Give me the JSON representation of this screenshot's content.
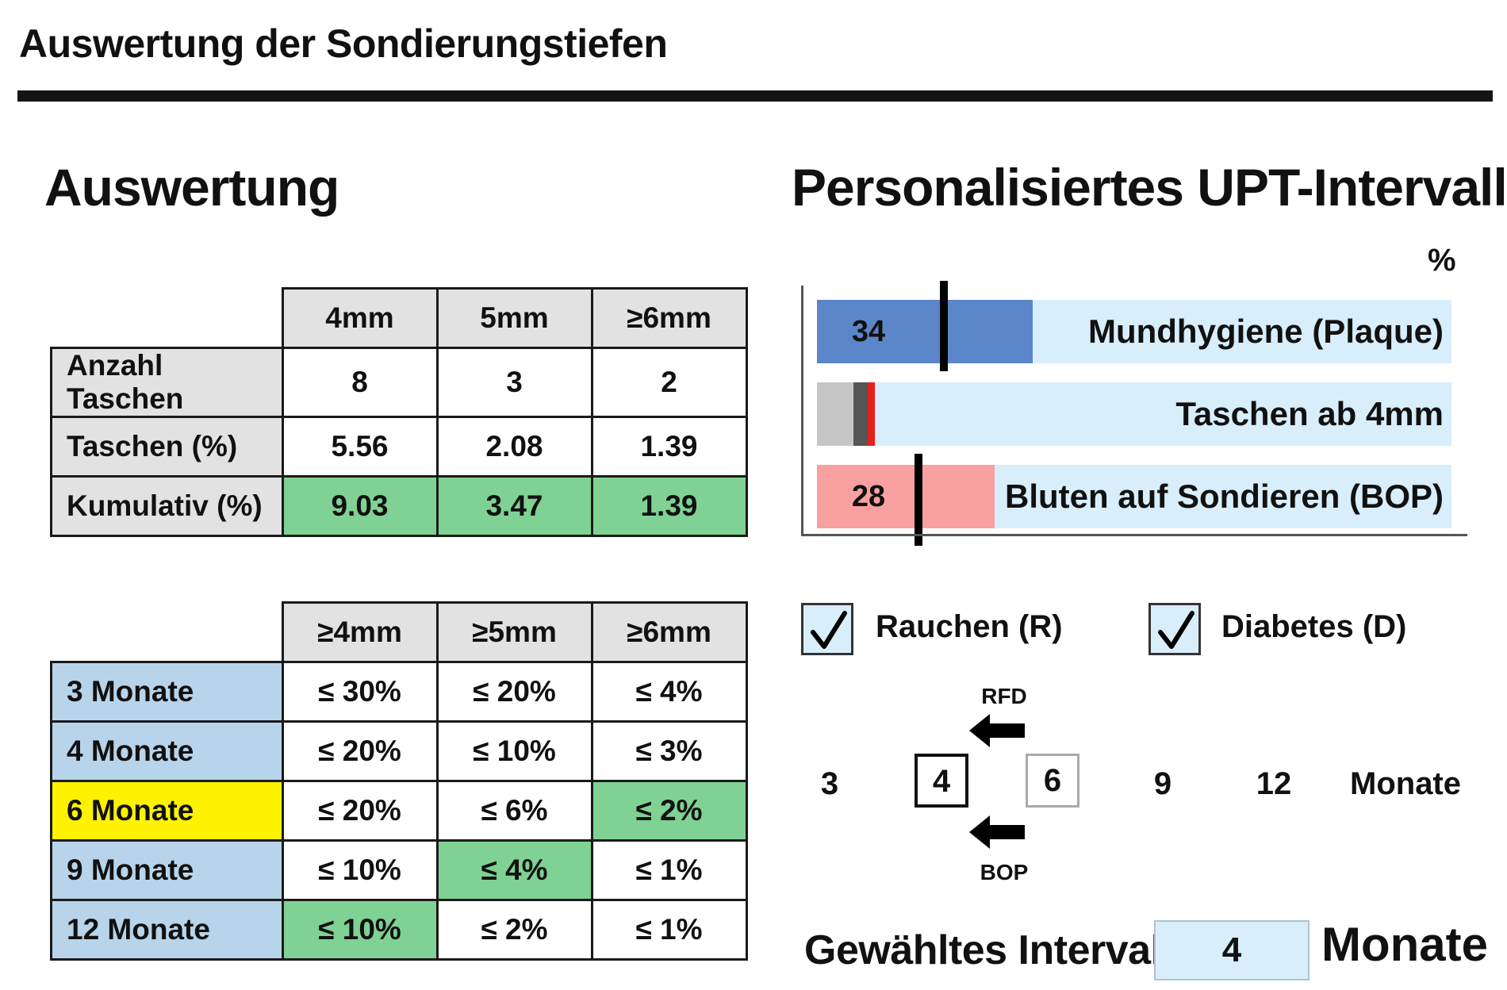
{
  "header": {
    "title": "Auswertung der Sondierungstiefen"
  },
  "left": {
    "heading": "Auswertung",
    "table1": {
      "columns": [
        "4mm",
        "5mm",
        "≥6mm"
      ],
      "rows": [
        {
          "label": "Anzahl Taschen",
          "values": [
            "8",
            "3",
            "2"
          ]
        },
        {
          "label": "Taschen (%)",
          "values": [
            "5.56",
            "2.08",
            "1.39"
          ]
        },
        {
          "label": "Kumulativ (%)",
          "values": [
            "9.03",
            "3.47",
            "1.39"
          ]
        }
      ]
    },
    "table2": {
      "columns": [
        "≥4mm",
        "≥5mm",
        "≥6mm"
      ],
      "rows": [
        {
          "label": "3 Monate",
          "values": [
            "≤ 30%",
            "≤ 20%",
            "≤ 4%"
          ]
        },
        {
          "label": "4 Monate",
          "values": [
            "≤ 20%",
            "≤ 10%",
            "≤ 3%"
          ]
        },
        {
          "label": "6 Monate",
          "values": [
            "≤ 20%",
            "≤ 6%",
            "≤ 2%"
          ]
        },
        {
          "label": "9 Monate",
          "values": [
            "≤ 10%",
            "≤ 4%",
            "≤ 1%"
          ]
        },
        {
          "label": "12 Monate",
          "values": [
            "≤ 10%",
            "≤ 2%",
            "≤ 1%"
          ]
        }
      ]
    }
  },
  "right": {
    "heading": "Personalisiertes UPT-Intervall",
    "chart_unit": "%",
    "bars": [
      {
        "label": "Mundhygiene (Plaque)",
        "value_text": "34",
        "value": 34,
        "threshold": 20,
        "color": "#5b86c9"
      },
      {
        "label": "Taschen ab 4mm",
        "value_text": "",
        "value": 9.03,
        "color": "#c6c6c6"
      },
      {
        "label": "Bluten auf Sondieren (BOP)",
        "value_text": "28",
        "value": 28,
        "threshold": 16,
        "color": "#f9a0a0"
      }
    ],
    "checkboxes": [
      {
        "label": "Rauchen (R)",
        "checked": true
      },
      {
        "label": "Diabetes (D)",
        "checked": true
      }
    ],
    "scale": {
      "values": [
        "3",
        "4",
        "6",
        "9",
        "12"
      ],
      "unit": "Monate",
      "arrow_top_label": "RFD",
      "arrow_bottom_label": "BOP"
    },
    "selected": {
      "label": "Gewähltes Intervall:",
      "value": "4",
      "unit": "Monate"
    }
  }
}
